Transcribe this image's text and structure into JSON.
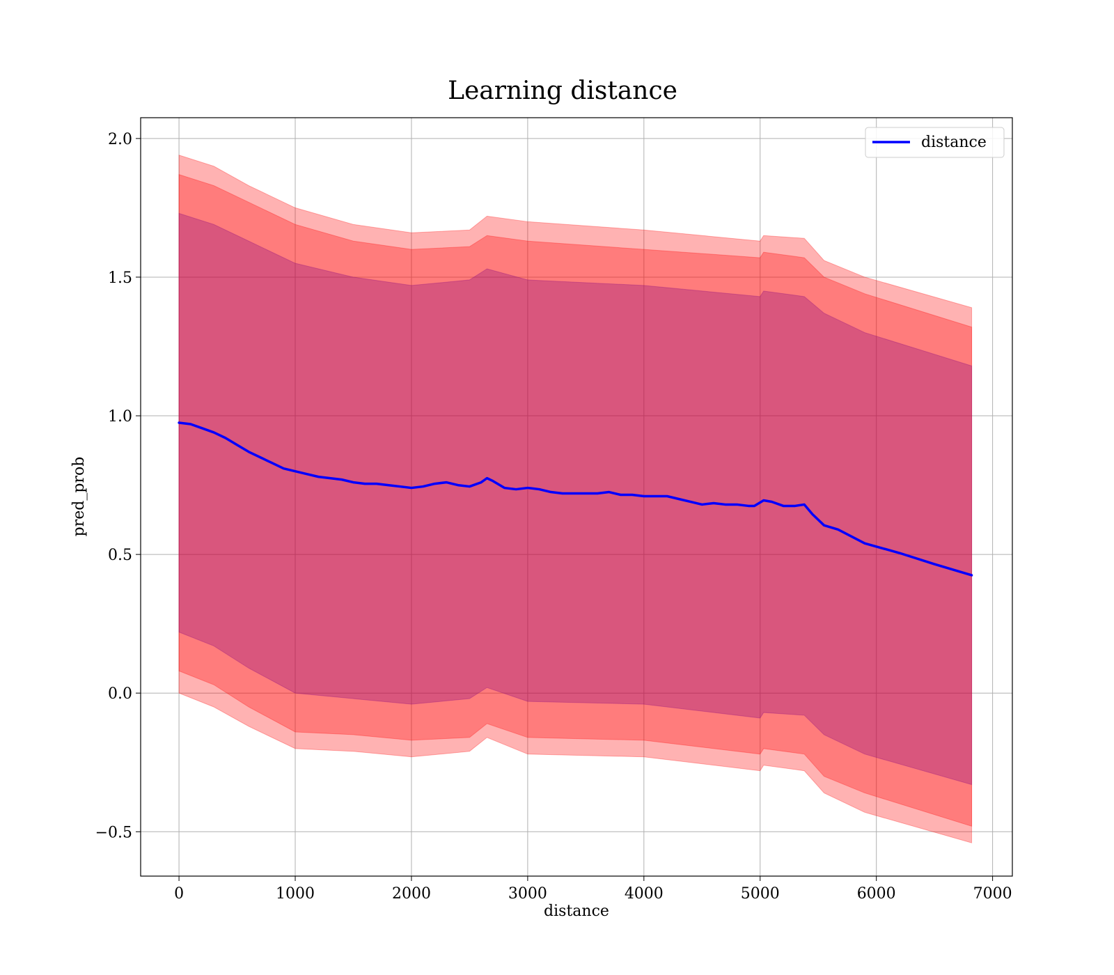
{
  "chart_data": {
    "type": "line",
    "title": "Learning distance",
    "xlabel": "distance",
    "ylabel": "pred_prob",
    "xlim": [
      -330,
      7170
    ],
    "ylim": [
      -0.66,
      2.075
    ],
    "xticks": [
      0,
      1000,
      2000,
      3000,
      4000,
      5000,
      6000,
      7000
    ],
    "xtick_labels": [
      "0",
      "1000",
      "2000",
      "3000",
      "4000",
      "5000",
      "6000",
      "7000"
    ],
    "yticks": [
      -0.5,
      0.0,
      0.5,
      1.0,
      1.5,
      2.0
    ],
    "ytick_labels": [
      "−0.5",
      "0.0",
      "0.5",
      "1.0",
      "1.5",
      "2.0"
    ],
    "grid": true,
    "legend": {
      "placement": "top-right",
      "entries": [
        "distance"
      ]
    },
    "series": [
      {
        "name": "distance",
        "color": "#0000ff",
        "x": [
          0,
          100,
          200,
          300,
          400,
          500,
          600,
          700,
          800,
          900,
          1000,
          1100,
          1200,
          1300,
          1400,
          1500,
          1600,
          1700,
          1800,
          1900,
          2000,
          2100,
          2200,
          2300,
          2400,
          2500,
          2600,
          2650,
          2700,
          2800,
          2900,
          3000,
          3100,
          3200,
          3300,
          3400,
          3500,
          3600,
          3700,
          3800,
          3900,
          4000,
          4100,
          4200,
          4300,
          4400,
          4500,
          4600,
          4700,
          4800,
          4900,
          4950,
          5030,
          5100,
          5200,
          5300,
          5380,
          5450,
          5550,
          5670,
          5900,
          6200,
          6500,
          6820
        ],
        "y": [
          0.975,
          0.97,
          0.955,
          0.94,
          0.92,
          0.895,
          0.87,
          0.85,
          0.83,
          0.81,
          0.8,
          0.79,
          0.78,
          0.775,
          0.77,
          0.76,
          0.755,
          0.755,
          0.75,
          0.745,
          0.74,
          0.745,
          0.755,
          0.76,
          0.75,
          0.745,
          0.76,
          0.775,
          0.765,
          0.74,
          0.735,
          0.74,
          0.735,
          0.725,
          0.72,
          0.72,
          0.72,
          0.72,
          0.725,
          0.715,
          0.715,
          0.71,
          0.71,
          0.71,
          0.7,
          0.69,
          0.68,
          0.685,
          0.68,
          0.68,
          0.675,
          0.675,
          0.695,
          0.69,
          0.675,
          0.675,
          0.68,
          0.645,
          0.605,
          0.59,
          0.54,
          0.505,
          0.465,
          0.425
        ]
      }
    ],
    "bands": [
      {
        "color": "#ff0000",
        "opacity": 0.3,
        "x": [
          0,
          300,
          600,
          1000,
          1500,
          2000,
          2500,
          2650,
          3000,
          4000,
          5000,
          5030,
          5380,
          5550,
          5900,
          6820
        ],
        "upper": [
          1.94,
          1.9,
          1.83,
          1.75,
          1.69,
          1.66,
          1.67,
          1.72,
          1.7,
          1.67,
          1.63,
          1.65,
          1.64,
          1.56,
          1.5,
          1.39
        ],
        "lower": [
          0.0,
          -0.05,
          -0.12,
          -0.2,
          -0.21,
          -0.23,
          -0.21,
          -0.16,
          -0.22,
          -0.23,
          -0.28,
          -0.26,
          -0.28,
          -0.36,
          -0.43,
          -0.54
        ]
      },
      {
        "color": "#ff0000",
        "opacity": 0.3,
        "x": [
          0,
          300,
          600,
          1000,
          1500,
          2000,
          2500,
          2650,
          3000,
          4000,
          5000,
          5030,
          5380,
          5550,
          5900,
          6820
        ],
        "upper": [
          1.87,
          1.83,
          1.77,
          1.69,
          1.63,
          1.6,
          1.61,
          1.65,
          1.63,
          1.6,
          1.57,
          1.59,
          1.57,
          1.5,
          1.44,
          1.32
        ],
        "lower": [
          0.08,
          0.03,
          -0.05,
          -0.14,
          -0.15,
          -0.17,
          -0.16,
          -0.11,
          -0.16,
          -0.17,
          -0.22,
          -0.2,
          -0.22,
          -0.3,
          -0.36,
          -0.48
        ]
      },
      {
        "color": "#800080",
        "opacity": 0.3,
        "x": [
          0,
          300,
          600,
          1000,
          1500,
          2000,
          2500,
          2650,
          3000,
          4000,
          5000,
          5030,
          5380,
          5550,
          5900,
          6820
        ],
        "upper": [
          1.73,
          1.69,
          1.63,
          1.55,
          1.5,
          1.47,
          1.49,
          1.53,
          1.49,
          1.47,
          1.43,
          1.45,
          1.43,
          1.37,
          1.3,
          1.18
        ],
        "lower": [
          0.22,
          0.17,
          0.09,
          0.0,
          -0.02,
          -0.04,
          -0.02,
          0.02,
          -0.03,
          -0.04,
          -0.09,
          -0.07,
          -0.08,
          -0.15,
          -0.22,
          -0.33
        ]
      }
    ]
  }
}
